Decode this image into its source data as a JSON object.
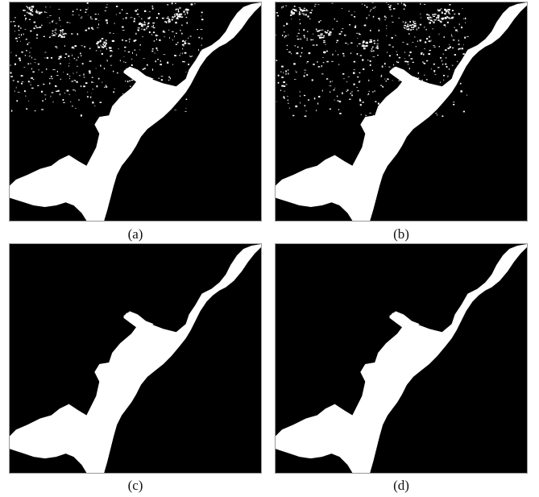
{
  "panels": [
    {
      "id": "a",
      "label": "(a)",
      "noisy": true
    },
    {
      "id": "b",
      "label": "(b)",
      "noisy": true
    },
    {
      "id": "c",
      "label": "(c)",
      "noisy": false
    },
    {
      "id": "d",
      "label": "(d)",
      "noisy": false
    }
  ],
  "colors": {
    "water": "#ffffff",
    "land": "#000000",
    "frame": "#9a9a9a",
    "label_text": "#111111"
  }
}
